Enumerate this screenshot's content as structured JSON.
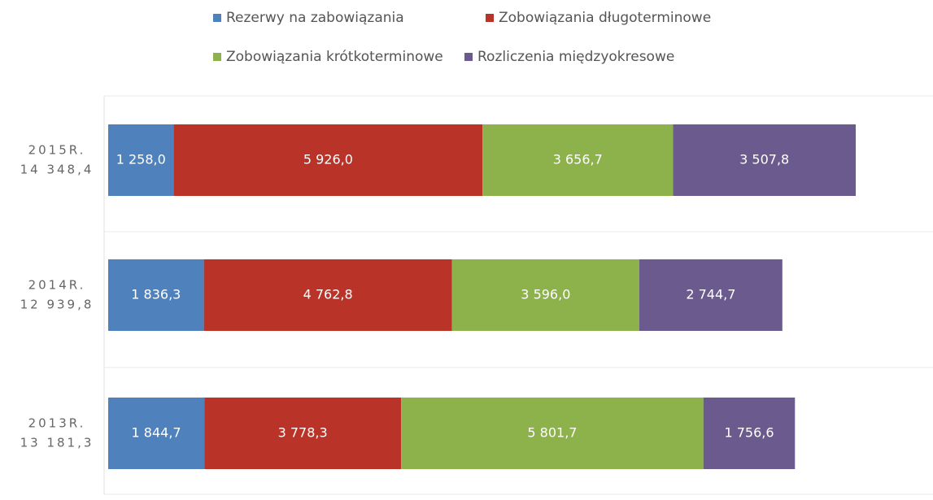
{
  "chart_data": {
    "type": "stacked-bar-horizontal",
    "categories": [
      "2015R.",
      "2014R.",
      "2013R."
    ],
    "totals": [
      14348.4,
      12939.8,
      13181.3
    ],
    "total_labels": [
      "14 348,4",
      "12 939,8",
      "13 181,3"
    ],
    "series": [
      {
        "name": "Rezerwy na zabowiązania",
        "color": "#4f81bd",
        "values": [
          1258.0,
          1836.3,
          1844.7
        ],
        "value_labels": [
          "1 258,0",
          "1 836,3",
          "1 844,7"
        ]
      },
      {
        "name": "Zobowiązania długoterminowe",
        "color": "#b93329",
        "values": [
          5926.0,
          4762.8,
          3778.3
        ],
        "value_labels": [
          "5 926,0",
          "4 762,8",
          "3 778,3"
        ]
      },
      {
        "name": "Zobowiązania krótkoterminowe",
        "color": "#8db24c",
        "values": [
          3656.7,
          3596.0,
          5801.7
        ],
        "value_labels": [
          "3 656,7",
          "3 596,0",
          "5 801,7"
        ]
      },
      {
        "name": "Rozliczenia międzyokresowe",
        "color": "#6a5a8e",
        "values": [
          3507.8,
          2744.7,
          1756.6
        ],
        "value_labels": [
          "3 507,8",
          "2 744,7",
          "1 756,6"
        ]
      }
    ],
    "xlim": [
      0,
      15800
    ]
  }
}
